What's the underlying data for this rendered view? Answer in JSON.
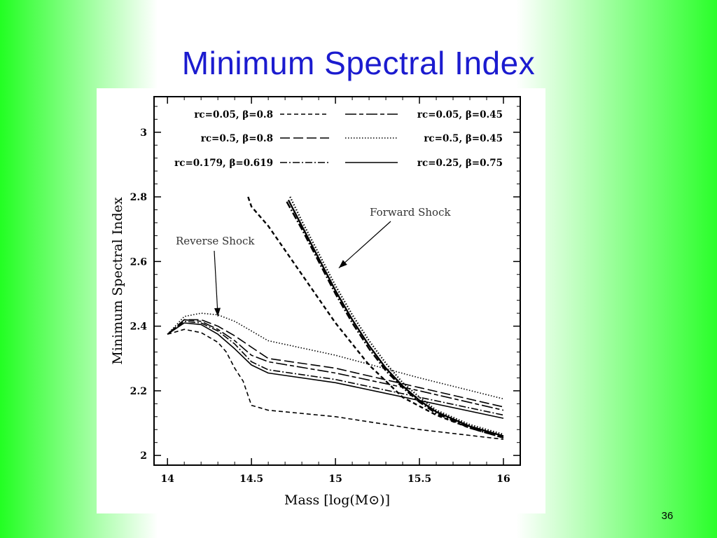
{
  "slide": {
    "title": "Minimum Spectral Index",
    "number": "36",
    "background_colors": [
      "#22ff22",
      "#ffffff",
      "#2aff2a"
    ],
    "title_color": "#1b1bcf"
  },
  "chart_data": {
    "type": "line",
    "title": "",
    "xlabel": "Mass [log(M⊙)]",
    "ylabel": "Minimum Spectral Index",
    "xlim": [
      13.92,
      16.1
    ],
    "ylim": [
      1.97,
      3.11
    ],
    "x_ticks": [
      14,
      14.5,
      15,
      15.5,
      16
    ],
    "x_tick_labels": [
      "14",
      "14.5",
      "15",
      "15.5",
      "16"
    ],
    "y_ticks": [
      2,
      2.2,
      2.4,
      2.6,
      2.8,
      3
    ],
    "y_tick_labels": [
      "2",
      "2.2",
      "2.4",
      "2.6",
      "2.8",
      "3"
    ],
    "grid": false,
    "legend_placement": "top",
    "legend": [
      {
        "label": "rc=0.05, β=0.8",
        "style": "short-dash"
      },
      {
        "label": "rc=0.05, β=0.45",
        "style": "long-short-dash"
      },
      {
        "label": "rc=0.5, β=0.8",
        "style": "long-dash"
      },
      {
        "label": "rc=0.5, β=0.45",
        "style": "dotted"
      },
      {
        "label": "rc=0.179, β=0.619",
        "style": "dash-dot"
      },
      {
        "label": "rc=0.25, β=0.75",
        "style": "solid"
      }
    ],
    "annotations": [
      {
        "text": "Reverse Shock",
        "points_to": [
          14.3,
          2.43
        ]
      },
      {
        "text": "Forward Shock",
        "points_to": [
          15.02,
          2.58
        ]
      }
    ],
    "series": [
      {
        "group": "reverse",
        "style": "short-dash",
        "x": [
          14.0,
          14.1,
          14.2,
          14.3,
          14.35,
          14.4,
          14.45,
          14.5,
          14.6,
          15.0,
          15.5,
          16.0
        ],
        "y": [
          2.375,
          2.39,
          2.38,
          2.35,
          2.32,
          2.27,
          2.23,
          2.155,
          2.14,
          2.12,
          2.08,
          2.05
        ]
      },
      {
        "group": "reverse",
        "style": "long-short-dash",
        "x": [
          14.0,
          14.1,
          14.2,
          14.3,
          14.4,
          14.5,
          14.6,
          15.0,
          15.5,
          16.0
        ],
        "y": [
          2.375,
          2.42,
          2.415,
          2.39,
          2.355,
          2.31,
          2.29,
          2.255,
          2.2,
          2.14
        ]
      },
      {
        "group": "reverse",
        "style": "long-dash",
        "x": [
          14.0,
          14.1,
          14.2,
          14.3,
          14.4,
          14.5,
          14.6,
          15.0,
          15.5,
          16.0
        ],
        "y": [
          2.375,
          2.42,
          2.42,
          2.4,
          2.37,
          2.335,
          2.3,
          2.27,
          2.21,
          2.15
        ]
      },
      {
        "group": "reverse",
        "style": "dotted",
        "x": [
          14.0,
          14.1,
          14.2,
          14.3,
          14.4,
          14.5,
          14.6,
          15.0,
          15.5,
          16.0
        ],
        "y": [
          2.375,
          2.43,
          2.44,
          2.435,
          2.415,
          2.385,
          2.355,
          2.31,
          2.24,
          2.175
        ]
      },
      {
        "group": "reverse",
        "style": "dash-dot",
        "x": [
          14.0,
          14.1,
          14.2,
          14.3,
          14.4,
          14.5,
          14.6,
          15.0,
          15.5,
          16.0
        ],
        "y": [
          2.375,
          2.415,
          2.41,
          2.385,
          2.345,
          2.29,
          2.265,
          2.235,
          2.18,
          2.125
        ]
      },
      {
        "group": "reverse",
        "style": "solid",
        "x": [
          14.0,
          14.1,
          14.2,
          14.3,
          14.4,
          14.5,
          14.6,
          15.0,
          15.5,
          16.0
        ],
        "y": [
          2.375,
          2.41,
          2.405,
          2.375,
          2.33,
          2.28,
          2.255,
          2.225,
          2.17,
          2.115
        ]
      },
      {
        "group": "forward",
        "style": "short-dash",
        "x": [
          14.48,
          14.5,
          14.6,
          14.8,
          15.0,
          15.2,
          15.4,
          15.6,
          15.8,
          16.0
        ],
        "y": [
          2.8,
          2.77,
          2.71,
          2.56,
          2.41,
          2.28,
          2.18,
          2.125,
          2.085,
          2.055
        ]
      },
      {
        "group": "forward",
        "style": "solid",
        "x": [
          14.72,
          14.8,
          14.9,
          15.0,
          15.1,
          15.2,
          15.3,
          15.4,
          15.5,
          15.6,
          15.8,
          16.0
        ],
        "y": [
          2.79,
          2.71,
          2.61,
          2.51,
          2.42,
          2.34,
          2.27,
          2.215,
          2.17,
          2.135,
          2.09,
          2.06
        ]
      },
      {
        "group": "forward",
        "style": "dotted",
        "x": [
          14.73,
          14.8,
          14.9,
          15.0,
          15.1,
          15.2,
          15.3,
          15.4,
          15.5,
          15.6,
          15.8,
          16.0
        ],
        "y": [
          2.8,
          2.725,
          2.625,
          2.525,
          2.435,
          2.355,
          2.285,
          2.225,
          2.18,
          2.14,
          2.095,
          2.065
        ]
      },
      {
        "group": "forward",
        "style": "dash-dot",
        "x": [
          14.71,
          14.8,
          14.9,
          15.0,
          15.1,
          15.2,
          15.3,
          15.4,
          15.5,
          15.6,
          15.8,
          16.0
        ],
        "y": [
          2.785,
          2.7,
          2.6,
          2.5,
          2.41,
          2.33,
          2.262,
          2.21,
          2.165,
          2.13,
          2.085,
          2.055
        ]
      }
    ]
  }
}
